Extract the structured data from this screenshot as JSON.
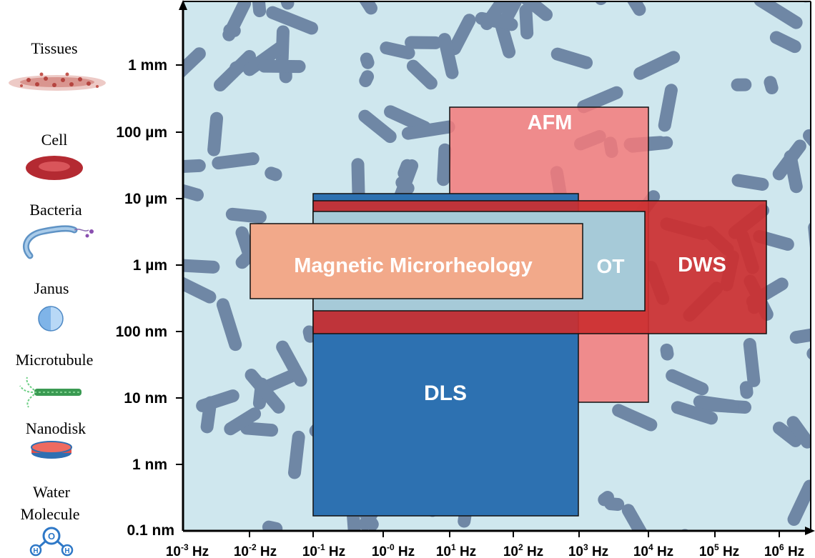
{
  "y_axis": {
    "ticks": [
      "1 mm",
      "100 µm",
      "10 µm",
      "1 µm",
      "100 nm",
      "10 nm",
      "1 nm",
      "0.1 nm"
    ]
  },
  "x_axis": {
    "ticks": [
      {
        "base": "10",
        "exp": "-3",
        "unit": "Hz"
      },
      {
        "base": "10",
        "exp": "-2",
        "unit": "Hz"
      },
      {
        "base": "10",
        "exp": "-1",
        "unit": "Hz"
      },
      {
        "base": "10",
        "exp": "-0",
        "unit": "Hz"
      },
      {
        "base": "10",
        "exp": "1",
        "unit": "Hz"
      },
      {
        "base": "10",
        "exp": "2",
        "unit": "Hz"
      },
      {
        "base": "10",
        "exp": "3",
        "unit": "Hz"
      },
      {
        "base": "10",
        "exp": "4",
        "unit": "Hz"
      },
      {
        "base": "10",
        "exp": "5",
        "unit": "Hz"
      },
      {
        "base": "10",
        "exp": "6",
        "unit": "Hz"
      }
    ]
  },
  "scale_items": [
    {
      "label": "Tissues",
      "icon": "tissue-icon"
    },
    {
      "label": "Cell",
      "icon": "red-blood-cell-icon"
    },
    {
      "label": "Bacteria",
      "icon": "bacteria-icon"
    },
    {
      "label": "Janus",
      "icon": "janus-particle-icon"
    },
    {
      "label": "Microtubule",
      "icon": "microtubule-icon"
    },
    {
      "label": "Nanodisk",
      "icon": "nanodisk-icon"
    },
    {
      "label": "Water Molecule",
      "label_lines": [
        "Water",
        "Molecule"
      ],
      "icon": "water-molecule-icon"
    }
  ],
  "techniques": {
    "afm": {
      "label": "AFM",
      "freq_hz": [
        10,
        10000
      ],
      "size_m": [
        1e-08,
        0.00025
      ],
      "color": "#f47a7a"
    },
    "dws": {
      "label": "DWS",
      "freq_hz": [
        0.1,
        1000000
      ],
      "size_m": [
        1e-07,
        1e-05
      ],
      "color": "#cc2f30"
    },
    "dls": {
      "label": "DLS",
      "freq_hz": [
        0.1,
        1000
      ],
      "size_m": [
        1.6e-10,
        1.2e-05
      ],
      "color": "#2d71b1"
    },
    "ot": {
      "label": "OT",
      "freq_hz": [
        0.1,
        10000
      ],
      "size_m": [
        3e-07,
        8e-06
      ],
      "color": "#a6cad8"
    },
    "magnetic": {
      "label": "Magnetic Microrheology",
      "freq_hz": [
        0.01,
        1000
      ],
      "size_m": [
        3.5e-07,
        5e-06
      ],
      "color": "#f2a98a"
    }
  },
  "colors": {
    "background": "#cfe7ee",
    "rods": "#6f87a5"
  }
}
